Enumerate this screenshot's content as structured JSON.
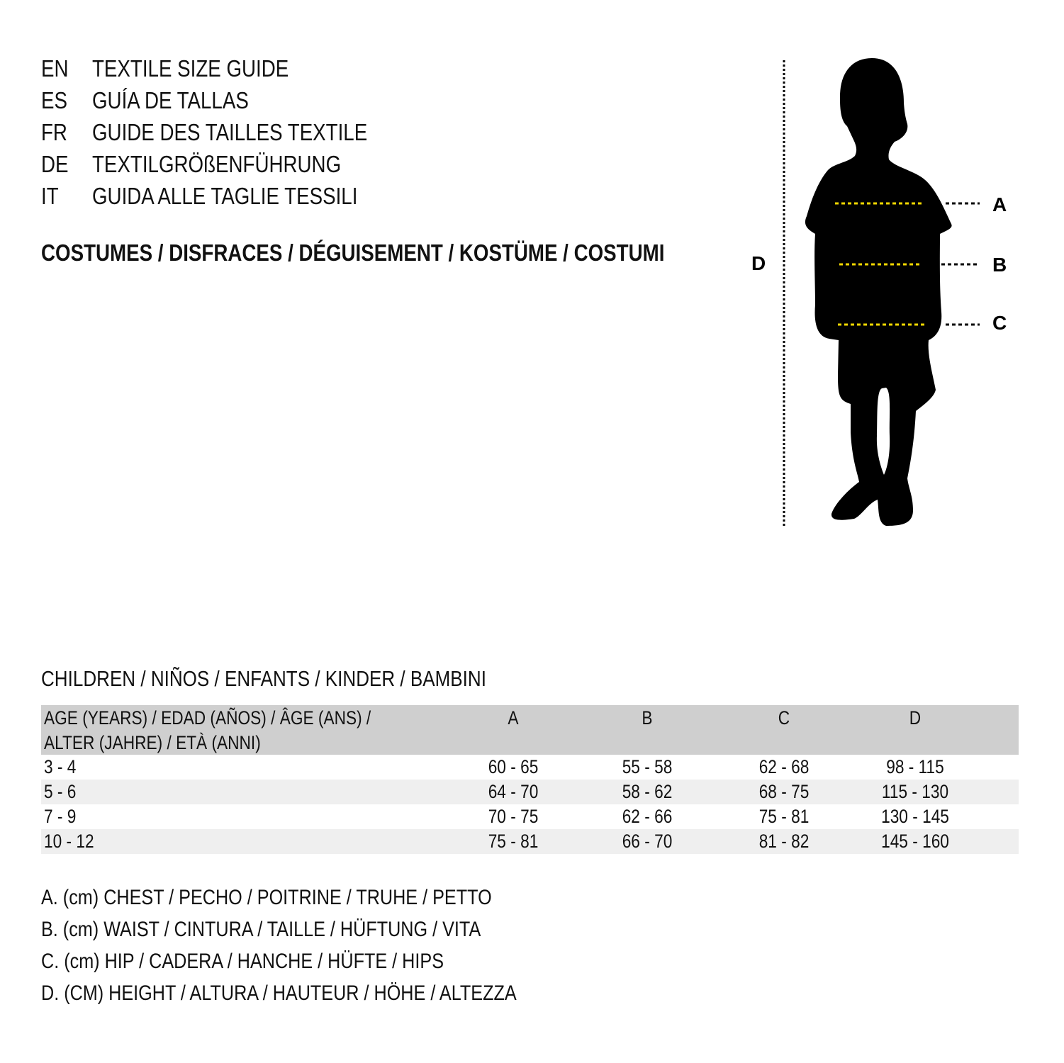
{
  "titles": [
    {
      "code": "EN",
      "text": "TEXTILE SIZE GUIDE"
    },
    {
      "code": "ES",
      "text": "GUÍA DE TALLAS"
    },
    {
      "code": "FR",
      "text": "GUIDE DES TAILLES TEXTILE"
    },
    {
      "code": "DE",
      "text": "TEXTILGRÖßENFÜHRUNG"
    },
    {
      "code": "IT",
      "text": "GUIDA ALLE TAGLIE TESSILI"
    }
  ],
  "category": "COSTUMES / DISFRACES / DÉGUISEMENT / KOSTÜME / COSTUMI",
  "figure": {
    "labels": {
      "a": "A",
      "b": "B",
      "c": "C",
      "d": "D"
    },
    "guide_color": "#f5d800"
  },
  "table": {
    "caption": "CHILDREN / NIÑOS / ENFANTS / KINDER / BAMBINI",
    "headers": [
      "AGE (YEARS) / EDAD (AÑOS) / ÂGE (ANS) /",
      "ALTER (JAHRE) / ETÀ (ANNI)",
      "A",
      "B",
      "C",
      "D"
    ],
    "rows": [
      [
        "3 - 4",
        "60 - 65",
        "55 - 58",
        "62 - 68",
        "98 - 115"
      ],
      [
        "5 - 6",
        "64 - 70",
        "58 - 62",
        "68 - 75",
        "115 - 130"
      ],
      [
        "7 - 9",
        "70 - 75",
        "62 - 66",
        "75 - 81",
        "130 - 145"
      ],
      [
        "10 - 12",
        "75 - 81",
        "66 - 70",
        "81 - 82",
        "145 - 160"
      ]
    ]
  },
  "legend": [
    "A. (cm) CHEST / PECHO / POITRINE / TRUHE / PETTO",
    "B. (cm) WAIST / CINTURA / TAILLE / HÜFTUNG / VITA",
    "C. (cm) HIP / CADERA / HANCHE / HÜFTE / HIPS",
    "D. (CM) HEIGHT / ALTURA / HAUTEUR / HÖHE / ALTEZZA"
  ]
}
